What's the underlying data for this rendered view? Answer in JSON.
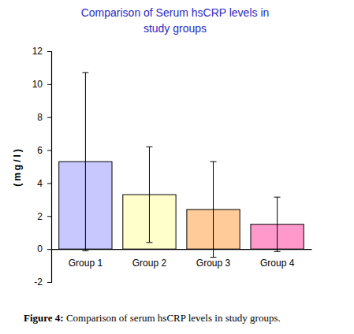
{
  "chart_data": {
    "type": "bar",
    "title": "Comparison of Serum hsCRP levels in study groups",
    "y_label": "(mg/l)",
    "categories": [
      "Group 1",
      "Group 2",
      "Group 3",
      "Group 4"
    ],
    "values": [
      5.3,
      3.3,
      2.4,
      1.5
    ],
    "errors": [
      5.4,
      2.9,
      2.9,
      1.65
    ],
    "colors": [
      "#c8c8ff",
      "#ffffcc",
      "#ffcc99",
      "#ff99cc"
    ],
    "ylim": [
      -2,
      12
    ],
    "yticks": [
      -2,
      0,
      2,
      4,
      6,
      8,
      10,
      12
    ],
    "grid": false
  },
  "caption": "Figure 4: Comparison of serum hsCRP levels in study groups."
}
